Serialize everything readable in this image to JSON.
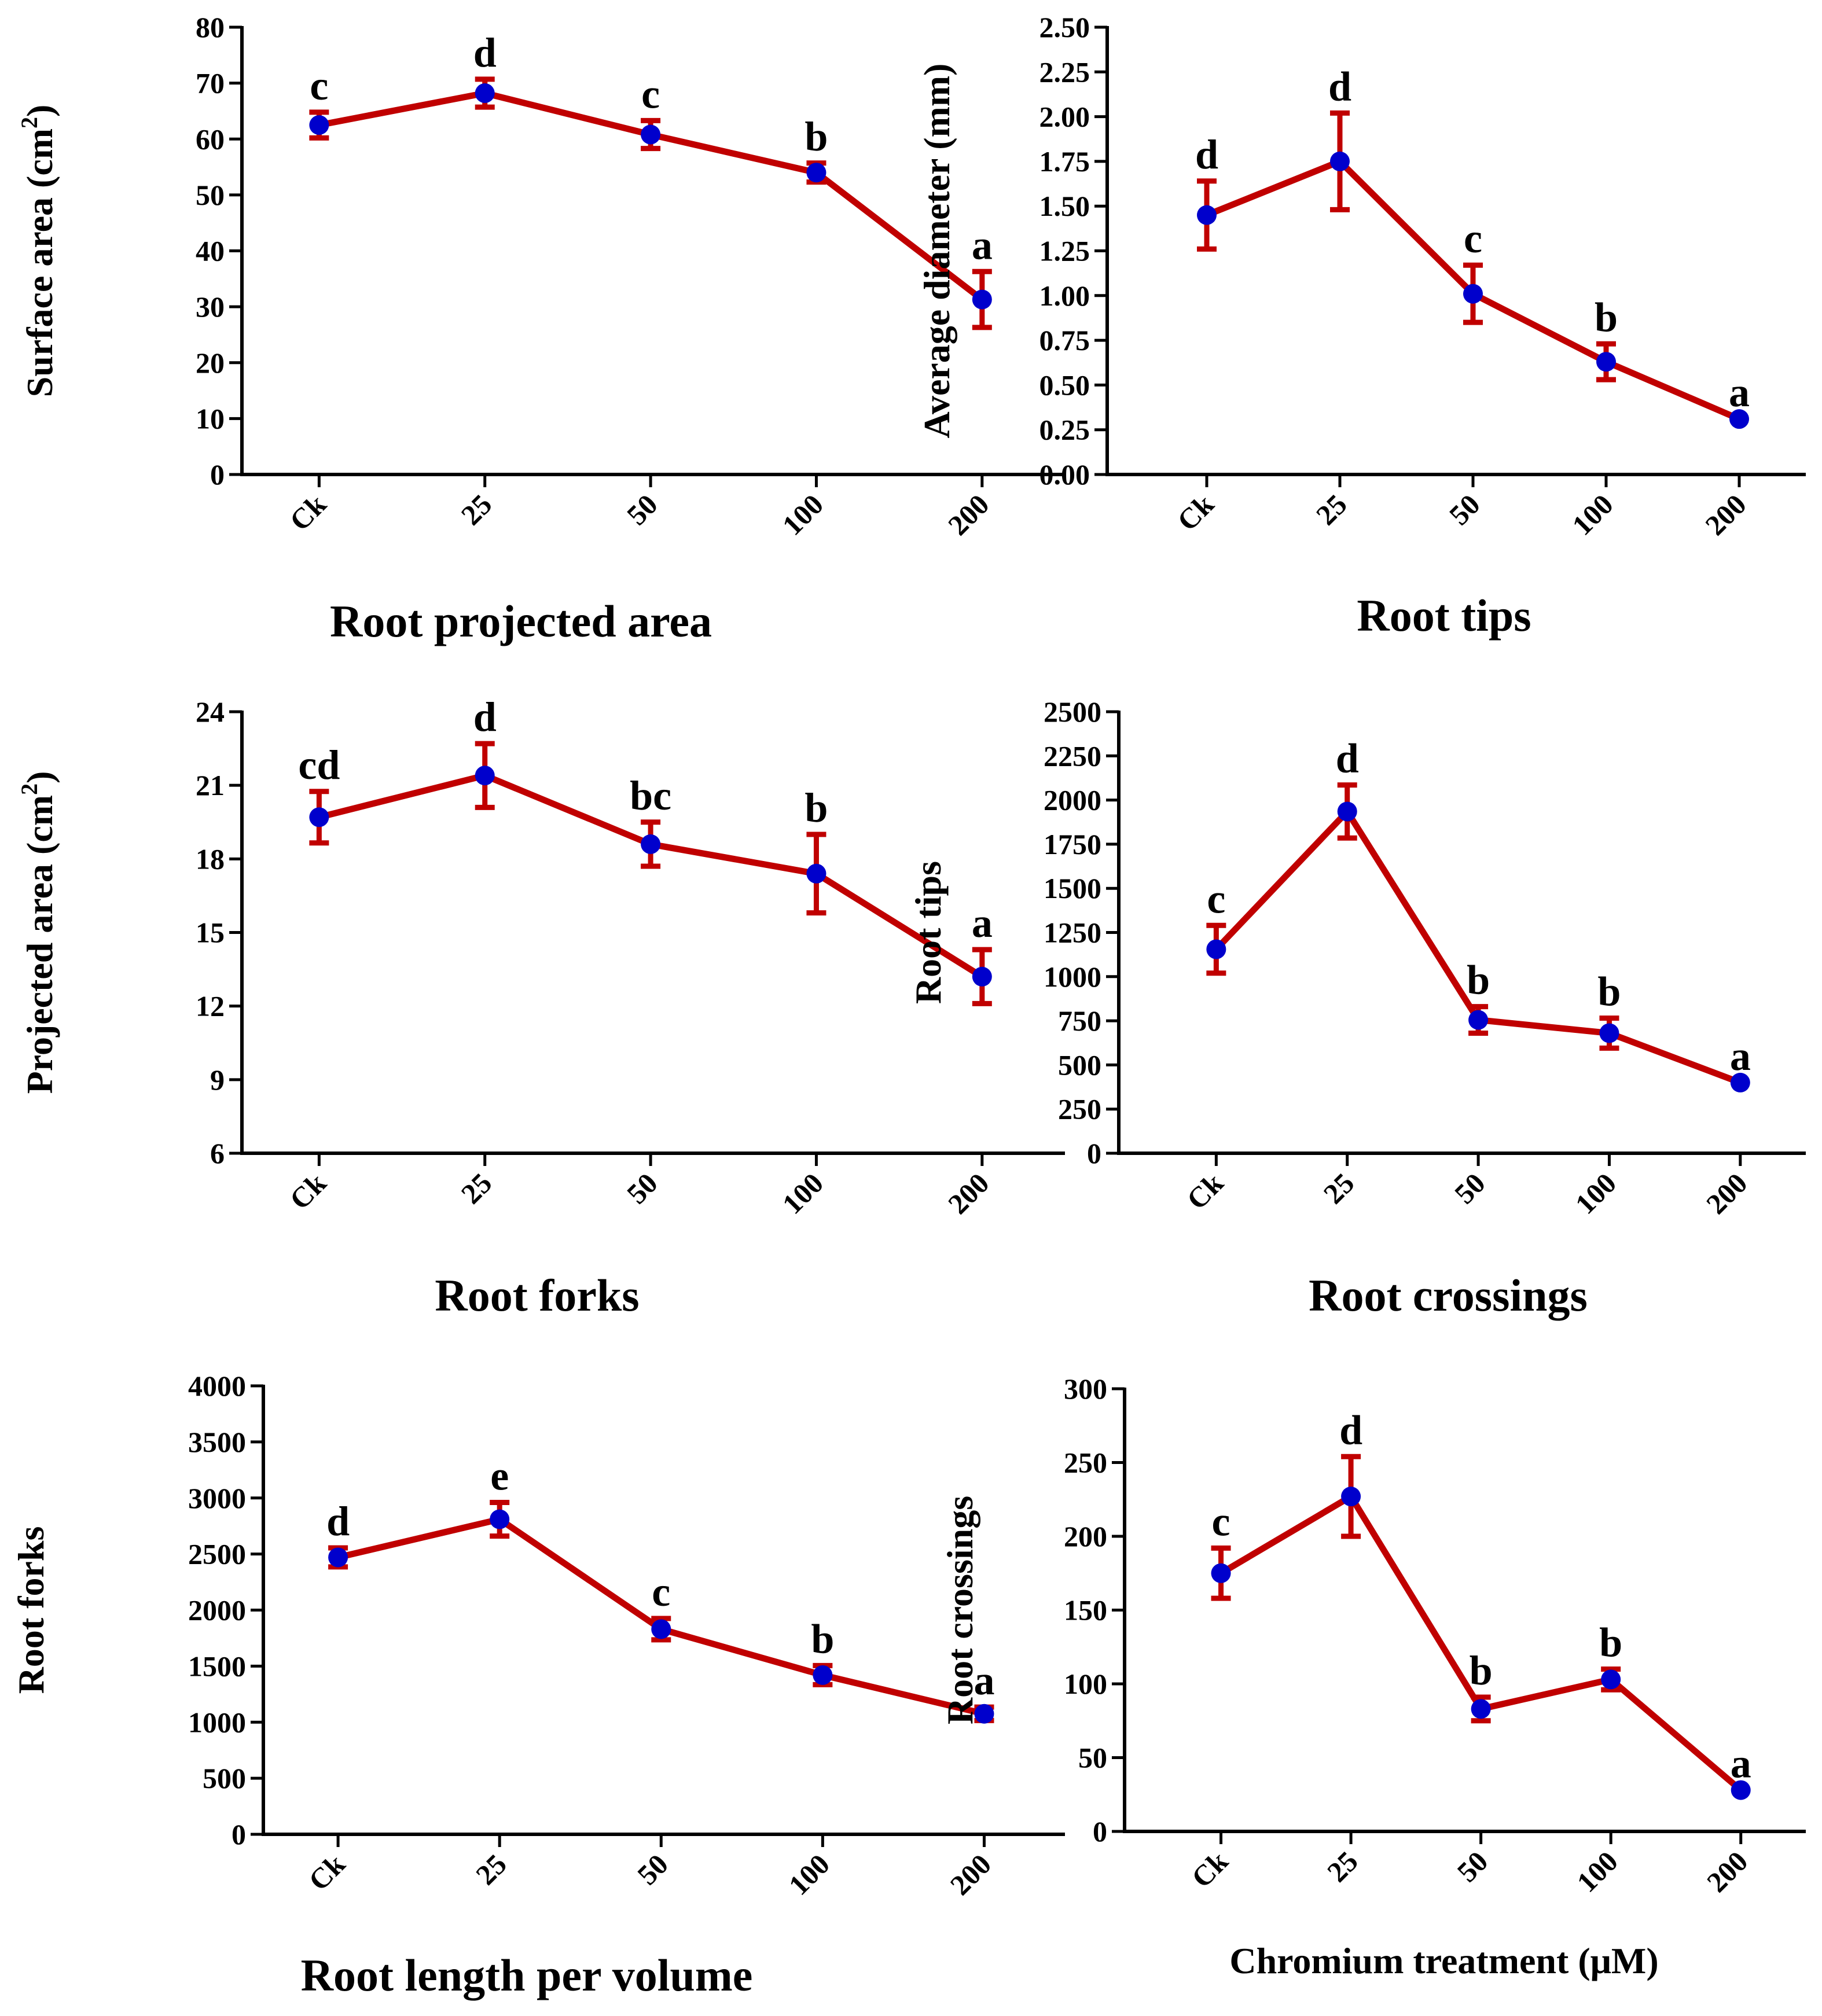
{
  "colors": {
    "line": "#C00000",
    "marker": "#0000CC",
    "axis": "#000000",
    "background": "#FFFFFF"
  },
  "chart_data": [
    {
      "type": "line",
      "categories": [
        "Ck",
        "25",
        "50",
        "100",
        "200"
      ],
      "values": [
        62.5,
        68.2,
        60.8,
        54.0,
        31.3
      ],
      "errors": [
        2.3,
        2.5,
        2.5,
        1.7,
        5.0
      ],
      "significance": [
        "c",
        "d",
        "c",
        "b",
        "a"
      ],
      "ylabel": "Surface area (cm²)",
      "ylim": [
        0,
        80
      ],
      "yticks": [
        "0",
        "10",
        "20",
        "30",
        "40",
        "50",
        "60",
        "70",
        "80"
      ],
      "caption": "Root projected area",
      "xlabel": ""
    },
    {
      "type": "line",
      "categories": [
        "Ck",
        "25",
        "50",
        "100",
        "200"
      ],
      "values": [
        1.45,
        1.75,
        1.01,
        0.63,
        0.31
      ],
      "errors": [
        0.19,
        0.27,
        0.16,
        0.1,
        0.0
      ],
      "significance": [
        "d",
        "d",
        "c",
        "b",
        "a"
      ],
      "ylabel": "Average diameter (mm)",
      "ylim": [
        0,
        2.5
      ],
      "yticks": [
        "0.00",
        "0.25",
        "0.50",
        "0.75",
        "1.00",
        "1.25",
        "1.50",
        "1.75",
        "2.00",
        "2.25",
        "2.50"
      ],
      "caption": "Root tips",
      "xlabel": ""
    },
    {
      "type": "line",
      "categories": [
        "Ck",
        "25",
        "50",
        "100",
        "200"
      ],
      "values": [
        19.7,
        21.4,
        18.6,
        17.4,
        13.2
      ],
      "errors": [
        1.05,
        1.3,
        0.9,
        1.6,
        1.1
      ],
      "significance": [
        "cd",
        "d",
        "bc",
        "b",
        "a"
      ],
      "ylabel": "Projected area (cm²)",
      "ylim": [
        6,
        24
      ],
      "yticks": [
        "6",
        "9",
        "12",
        "15",
        "18",
        "21",
        "24"
      ],
      "caption": "Root forks",
      "xlabel": ""
    },
    {
      "type": "line",
      "categories": [
        "Ck",
        "25",
        "50",
        "100",
        "200"
      ],
      "values": [
        1155,
        1935,
        755,
        680,
        400
      ],
      "errors": [
        135,
        150,
        75,
        85,
        0
      ],
      "significance": [
        "c",
        "d",
        "b",
        "b",
        "a"
      ],
      "ylabel": "Root tips",
      "ylim": [
        0,
        2500
      ],
      "yticks": [
        "0",
        "250",
        "500",
        "750",
        "1000",
        "1250",
        "1500",
        "1750",
        "2000",
        "2250",
        "2500"
      ],
      "caption": "Root crossings",
      "xlabel": ""
    },
    {
      "type": "line",
      "categories": [
        "Ck",
        "25",
        "50",
        "100",
        "200"
      ],
      "values": [
        2470,
        2810,
        1830,
        1420,
        1075
      ],
      "errors": [
        85,
        150,
        95,
        85,
        60
      ],
      "significance": [
        "d",
        "e",
        "c",
        "b",
        "a"
      ],
      "ylabel": "Root forks",
      "ylim": [
        0,
        4000
      ],
      "yticks": [
        "0",
        "500",
        "1000",
        "1500",
        "2000",
        "2500",
        "3000",
        "3500",
        "4000"
      ],
      "caption": "Root length per volume",
      "xlabel": ""
    },
    {
      "type": "line",
      "categories": [
        "Ck",
        "25",
        "50",
        "100",
        "200"
      ],
      "values": [
        175,
        227,
        83,
        103,
        28
      ],
      "errors": [
        17,
        27,
        8,
        7,
        0
      ],
      "significance": [
        "c",
        "d",
        "b",
        "b",
        "a"
      ],
      "ylabel": "Root crossings",
      "ylim": [
        0,
        300
      ],
      "yticks": [
        "0",
        "50",
        "100",
        "150",
        "200",
        "250",
        "300"
      ],
      "caption": "",
      "xlabel": "Chromium treatment (μM)"
    }
  ]
}
